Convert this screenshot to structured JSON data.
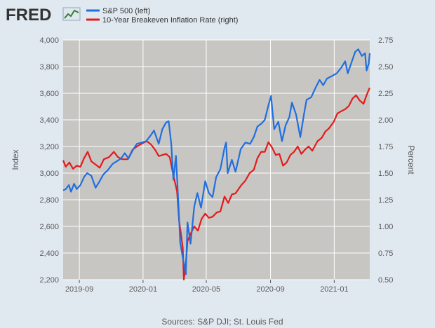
{
  "logo": {
    "text": "FRED"
  },
  "source": "Sources: S&P DJI; St. Louis Fed",
  "colors": {
    "background": "#e1e9f0",
    "plot": "#c8c6c3",
    "sp500": "#1f6fe0",
    "breakeven": "#e31b1b",
    "grid": "#ffffff",
    "text": "#595959"
  },
  "chart_data": {
    "type": "line",
    "grid": true,
    "legend_placement": "top-left",
    "x_range": [
      "2019-08-01",
      "2021-03-10"
    ],
    "x_ticks": [
      {
        "date": "2019-09-01",
        "label": "2019-09"
      },
      {
        "date": "2020-01-01",
        "label": "2020-01"
      },
      {
        "date": "2020-05-01",
        "label": "2020-05"
      },
      {
        "date": "2020-09-01",
        "label": "2020-09"
      },
      {
        "date": "2021-01-01",
        "label": "2021-01"
      }
    ],
    "y_left": {
      "label": "Index",
      "range": [
        2200,
        4000
      ],
      "ticks": [
        "2,200",
        "2,400",
        "2,600",
        "2,800",
        "3,000",
        "3,200",
        "3,400",
        "3,600",
        "3,800",
        "4,000"
      ]
    },
    "y_right": {
      "label": "Percent",
      "range": [
        0.5,
        2.75
      ],
      "ticks": [
        "0.50",
        "0.75",
        "1.00",
        "1.25",
        "1.50",
        "1.75",
        "2.00",
        "2.25",
        "2.50",
        "2.75"
      ]
    },
    "series": [
      {
        "name": "S&P 500 (left)",
        "axis": "left",
        "points": [
          [
            "2019-08-01",
            2870
          ],
          [
            "2019-08-06",
            2880
          ],
          [
            "2019-08-12",
            2910
          ],
          [
            "2019-08-16",
            2860
          ],
          [
            "2019-08-22",
            2920
          ],
          [
            "2019-08-27",
            2880
          ],
          [
            "2019-09-03",
            2910
          ],
          [
            "2019-09-10",
            2970
          ],
          [
            "2019-09-16",
            3000
          ],
          [
            "2019-09-24",
            2980
          ],
          [
            "2019-10-02",
            2890
          ],
          [
            "2019-10-10",
            2940
          ],
          [
            "2019-10-17",
            2990
          ],
          [
            "2019-10-25",
            3020
          ],
          [
            "2019-11-04",
            3070
          ],
          [
            "2019-11-12",
            3090
          ],
          [
            "2019-11-20",
            3110
          ],
          [
            "2019-11-27",
            3150
          ],
          [
            "2019-12-04",
            3110
          ],
          [
            "2019-12-12",
            3170
          ],
          [
            "2019-12-20",
            3220
          ],
          [
            "2019-12-30",
            3230
          ],
          [
            "2020-01-07",
            3240
          ],
          [
            "2020-01-15",
            3280
          ],
          [
            "2020-01-22",
            3320
          ],
          [
            "2020-01-31",
            3220
          ],
          [
            "2020-02-07",
            3330
          ],
          [
            "2020-02-14",
            3380
          ],
          [
            "2020-02-19",
            3390
          ],
          [
            "2020-02-24",
            3220
          ],
          [
            "2020-02-28",
            2950
          ],
          [
            "2020-03-04",
            3130
          ],
          [
            "2020-03-09",
            2750
          ],
          [
            "2020-03-12",
            2480
          ],
          [
            "2020-03-16",
            2390
          ],
          [
            "2020-03-23",
            2240
          ],
          [
            "2020-03-26",
            2630
          ],
          [
            "2020-04-01",
            2470
          ],
          [
            "2020-04-08",
            2750
          ],
          [
            "2020-04-14",
            2850
          ],
          [
            "2020-04-21",
            2740
          ],
          [
            "2020-04-29",
            2940
          ],
          [
            "2020-05-06",
            2850
          ],
          [
            "2020-05-13",
            2820
          ],
          [
            "2020-05-20",
            2970
          ],
          [
            "2020-05-28",
            3030
          ],
          [
            "2020-06-05",
            3190
          ],
          [
            "2020-06-08",
            3230
          ],
          [
            "2020-06-11",
            3000
          ],
          [
            "2020-06-19",
            3100
          ],
          [
            "2020-06-26",
            3010
          ],
          [
            "2020-07-06",
            3180
          ],
          [
            "2020-07-15",
            3230
          ],
          [
            "2020-07-24",
            3220
          ],
          [
            "2020-07-31",
            3270
          ],
          [
            "2020-08-07",
            3350
          ],
          [
            "2020-08-14",
            3370
          ],
          [
            "2020-08-21",
            3400
          ],
          [
            "2020-08-28",
            3510
          ],
          [
            "2020-09-02",
            3580
          ],
          [
            "2020-09-08",
            3330
          ],
          [
            "2020-09-16",
            3385
          ],
          [
            "2020-09-23",
            3240
          ],
          [
            "2020-09-30",
            3360
          ],
          [
            "2020-10-07",
            3420
          ],
          [
            "2020-10-12",
            3530
          ],
          [
            "2020-10-20",
            3440
          ],
          [
            "2020-10-28",
            3270
          ],
          [
            "2020-11-04",
            3440
          ],
          [
            "2020-11-09",
            3550
          ],
          [
            "2020-11-18",
            3570
          ],
          [
            "2020-11-25",
            3630
          ],
          [
            "2020-12-04",
            3700
          ],
          [
            "2020-12-11",
            3660
          ],
          [
            "2020-12-18",
            3710
          ],
          [
            "2020-12-28",
            3730
          ],
          [
            "2021-01-06",
            3750
          ],
          [
            "2021-01-14",
            3790
          ],
          [
            "2021-01-22",
            3840
          ],
          [
            "2021-01-27",
            3750
          ],
          [
            "2021-02-03",
            3830
          ],
          [
            "2021-02-10",
            3910
          ],
          [
            "2021-02-16",
            3930
          ],
          [
            "2021-02-23",
            3880
          ],
          [
            "2021-03-01",
            3900
          ],
          [
            "2021-03-04",
            3770
          ],
          [
            "2021-03-08",
            3820
          ],
          [
            "2021-03-10",
            3900
          ]
        ]
      },
      {
        "name": "10-Year Breakeven Inflation Rate (right)",
        "axis": "right",
        "points": [
          [
            "2019-08-01",
            1.62
          ],
          [
            "2019-08-06",
            1.56
          ],
          [
            "2019-08-13",
            1.6
          ],
          [
            "2019-08-20",
            1.54
          ],
          [
            "2019-08-27",
            1.57
          ],
          [
            "2019-09-03",
            1.56
          ],
          [
            "2019-09-10",
            1.64
          ],
          [
            "2019-09-17",
            1.7
          ],
          [
            "2019-09-24",
            1.61
          ],
          [
            "2019-10-02",
            1.58
          ],
          [
            "2019-10-10",
            1.55
          ],
          [
            "2019-10-18",
            1.63
          ],
          [
            "2019-10-28",
            1.65
          ],
          [
            "2019-11-06",
            1.7
          ],
          [
            "2019-11-14",
            1.65
          ],
          [
            "2019-11-22",
            1.63
          ],
          [
            "2019-12-03",
            1.63
          ],
          [
            "2019-12-12",
            1.72
          ],
          [
            "2019-12-20",
            1.75
          ],
          [
            "2019-12-31",
            1.78
          ],
          [
            "2020-01-08",
            1.8
          ],
          [
            "2020-01-16",
            1.77
          ],
          [
            "2020-01-24",
            1.72
          ],
          [
            "2020-01-31",
            1.66
          ],
          [
            "2020-02-07",
            1.67
          ],
          [
            "2020-02-14",
            1.68
          ],
          [
            "2020-02-21",
            1.65
          ],
          [
            "2020-02-28",
            1.48
          ],
          [
            "2020-03-06",
            1.33
          ],
          [
            "2020-03-10",
            1.05
          ],
          [
            "2020-03-13",
            0.95
          ],
          [
            "2020-03-17",
            0.8
          ],
          [
            "2020-03-19",
            0.5
          ],
          [
            "2020-03-23",
            0.65
          ],
          [
            "2020-03-26",
            0.86
          ],
          [
            "2020-04-01",
            0.93
          ],
          [
            "2020-04-08",
            1.0
          ],
          [
            "2020-04-15",
            0.96
          ],
          [
            "2020-04-22",
            1.07
          ],
          [
            "2020-04-29",
            1.12
          ],
          [
            "2020-05-06",
            1.08
          ],
          [
            "2020-05-13",
            1.09
          ],
          [
            "2020-05-21",
            1.13
          ],
          [
            "2020-05-28",
            1.14
          ],
          [
            "2020-06-05",
            1.28
          ],
          [
            "2020-06-12",
            1.22
          ],
          [
            "2020-06-19",
            1.3
          ],
          [
            "2020-06-26",
            1.31
          ],
          [
            "2020-07-06",
            1.38
          ],
          [
            "2020-07-15",
            1.43
          ],
          [
            "2020-07-23",
            1.5
          ],
          [
            "2020-07-31",
            1.53
          ],
          [
            "2020-08-07",
            1.64
          ],
          [
            "2020-08-14",
            1.7
          ],
          [
            "2020-08-21",
            1.7
          ],
          [
            "2020-08-28",
            1.79
          ],
          [
            "2020-09-04",
            1.74
          ],
          [
            "2020-09-11",
            1.67
          ],
          [
            "2020-09-18",
            1.68
          ],
          [
            "2020-09-25",
            1.57
          ],
          [
            "2020-10-02",
            1.6
          ],
          [
            "2020-10-09",
            1.67
          ],
          [
            "2020-10-16",
            1.7
          ],
          [
            "2020-10-23",
            1.75
          ],
          [
            "2020-10-30",
            1.68
          ],
          [
            "2020-11-06",
            1.72
          ],
          [
            "2020-11-13",
            1.75
          ],
          [
            "2020-11-20",
            1.71
          ],
          [
            "2020-11-30",
            1.8
          ],
          [
            "2020-12-08",
            1.83
          ],
          [
            "2020-12-15",
            1.89
          ],
          [
            "2020-12-22",
            1.92
          ],
          [
            "2020-12-31",
            1.98
          ],
          [
            "2021-01-07",
            2.06
          ],
          [
            "2021-01-14",
            2.08
          ],
          [
            "2021-01-22",
            2.1
          ],
          [
            "2021-01-29",
            2.13
          ],
          [
            "2021-02-05",
            2.2
          ],
          [
            "2021-02-12",
            2.23
          ],
          [
            "2021-02-19",
            2.18
          ],
          [
            "2021-02-26",
            2.15
          ],
          [
            "2021-03-03",
            2.22
          ],
          [
            "2021-03-08",
            2.28
          ],
          [
            "2021-03-10",
            2.3
          ]
        ]
      }
    ]
  }
}
